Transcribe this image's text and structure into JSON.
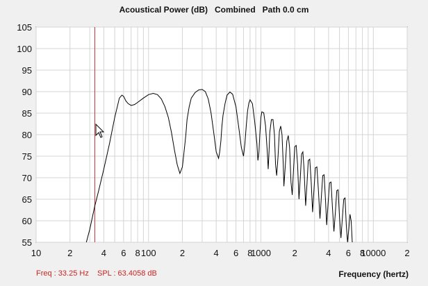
{
  "chart_data": {
    "type": "line",
    "title": "Acoustical Power (dB)   Combined   Path 0.0 cm",
    "xlabel": "Frequency (hertz)",
    "ylabel": "",
    "x_scale": "log",
    "xlim": [
      10,
      20000
    ],
    "ylim": [
      55,
      105
    ],
    "yticks": [
      55,
      60,
      65,
      70,
      75,
      80,
      85,
      90,
      95,
      100,
      105
    ],
    "xtick_labels": [
      {
        "value": 10,
        "label": "10"
      },
      {
        "value": 20,
        "label": "2"
      },
      {
        "value": 40,
        "label": "4"
      },
      {
        "value": 60,
        "label": "6"
      },
      {
        "value": 80,
        "label": "8"
      },
      {
        "value": 100,
        "label": "100"
      },
      {
        "value": 200,
        "label": "2"
      },
      {
        "value": 400,
        "label": "4"
      },
      {
        "value": 600,
        "label": "6"
      },
      {
        "value": 800,
        "label": "8"
      },
      {
        "value": 1000,
        "label": "1000"
      },
      {
        "value": 2000,
        "label": "2"
      },
      {
        "value": 4000,
        "label": "4"
      },
      {
        "value": 6000,
        "label": "6"
      },
      {
        "value": 8000,
        "label": "8"
      },
      {
        "value": 10000,
        "label": "10000"
      },
      {
        "value": 20000,
        "label": "2"
      }
    ],
    "grid": true,
    "cursor": {
      "freq_hz": 33.25,
      "spl_db": 63.4058
    },
    "series": [
      {
        "color": "#000000",
        "x": [
          28,
          30,
          33.25,
          36,
          40,
          45,
          50,
          55,
          58,
          60,
          63,
          66,
          70,
          75,
          80,
          90,
          100,
          110,
          120,
          130,
          140,
          150,
          160,
          170,
          180,
          190,
          200,
          205,
          210,
          215,
          220,
          230,
          240,
          260,
          280,
          300,
          320,
          340,
          360,
          380,
          400,
          420,
          430,
          440,
          450,
          460,
          480,
          500,
          530,
          560,
          600,
          640,
          670,
          700,
          720,
          740,
          760,
          780,
          800,
          840,
          880,
          920,
          940,
          960,
          980,
          1000,
          1020,
          1060,
          1100,
          1140,
          1160,
          1180,
          1200,
          1240,
          1280,
          1320,
          1350,
          1380,
          1420,
          1460,
          1500,
          1540,
          1580,
          1600,
          1650,
          1700,
          1750,
          1800,
          1850,
          1900,
          1950,
          2000,
          2060,
          2120,
          2180,
          2240,
          2300,
          2360,
          2420,
          2500,
          2570,
          2640,
          2720,
          2800,
          2880,
          2960,
          3050,
          3150,
          3250,
          3350,
          3450,
          3550,
          3650,
          3750,
          3850,
          3960,
          4080,
          4200,
          4330,
          4460,
          4600,
          4730,
          4860,
          5000,
          5150,
          5300,
          5450,
          5600,
          5750,
          5900,
          6050,
          6200,
          6350,
          6500
        ],
        "y": [
          55,
          58,
          63.4,
          67,
          72,
          78,
          84,
          88.5,
          89.2,
          88.9,
          87.8,
          87.2,
          86.8,
          87,
          87.5,
          88.5,
          89.3,
          89.6,
          89.3,
          88.3,
          86.5,
          84,
          80.5,
          76.5,
          73,
          71,
          72.5,
          75,
          77.5,
          80,
          83.5,
          86.5,
          88.5,
          89.8,
          90.4,
          90.5,
          90,
          88.3,
          85,
          80.5,
          76,
          74.5,
          76,
          78.5,
          82,
          84.5,
          87.3,
          89.2,
          89.9,
          89.4,
          86.5,
          81,
          77,
          75,
          78,
          82,
          85.5,
          87.3,
          88.1,
          87.2,
          83,
          78,
          74,
          76,
          80.5,
          84,
          85.3,
          85.1,
          82,
          76,
          72,
          76,
          80.5,
          83.5,
          83.5,
          80,
          73,
          70.5,
          75,
          80.8,
          82,
          80,
          73,
          68,
          73,
          78.5,
          79.8,
          77,
          69,
          66,
          72,
          77.2,
          77.5,
          73,
          65,
          70,
          75.5,
          76,
          72,
          63.5,
          68.5,
          74,
          74.3,
          69,
          62,
          67,
          72.3,
          72.5,
          67,
          60.5,
          65.5,
          70.5,
          70.7,
          65,
          59,
          64,
          68.8,
          69,
          63,
          57.5,
          62,
          67,
          67.2,
          61,
          56,
          60.5,
          65,
          65.3,
          59,
          55,
          58,
          61.5,
          60,
          55
        ]
      }
    ]
  },
  "status": {
    "freq_text": "Freq : 33.25 Hz",
    "spl_text": "SPL : 63.4058 dB"
  },
  "colors": {
    "background": "#f0f0f0",
    "plot_background": "#ffffff",
    "grid": "#d4d4d4",
    "axis": "#000000",
    "cursor_line": "#c03030",
    "status_text": "#cc2222"
  },
  "icons": {
    "cursor": "arrow-pointer-icon"
  }
}
